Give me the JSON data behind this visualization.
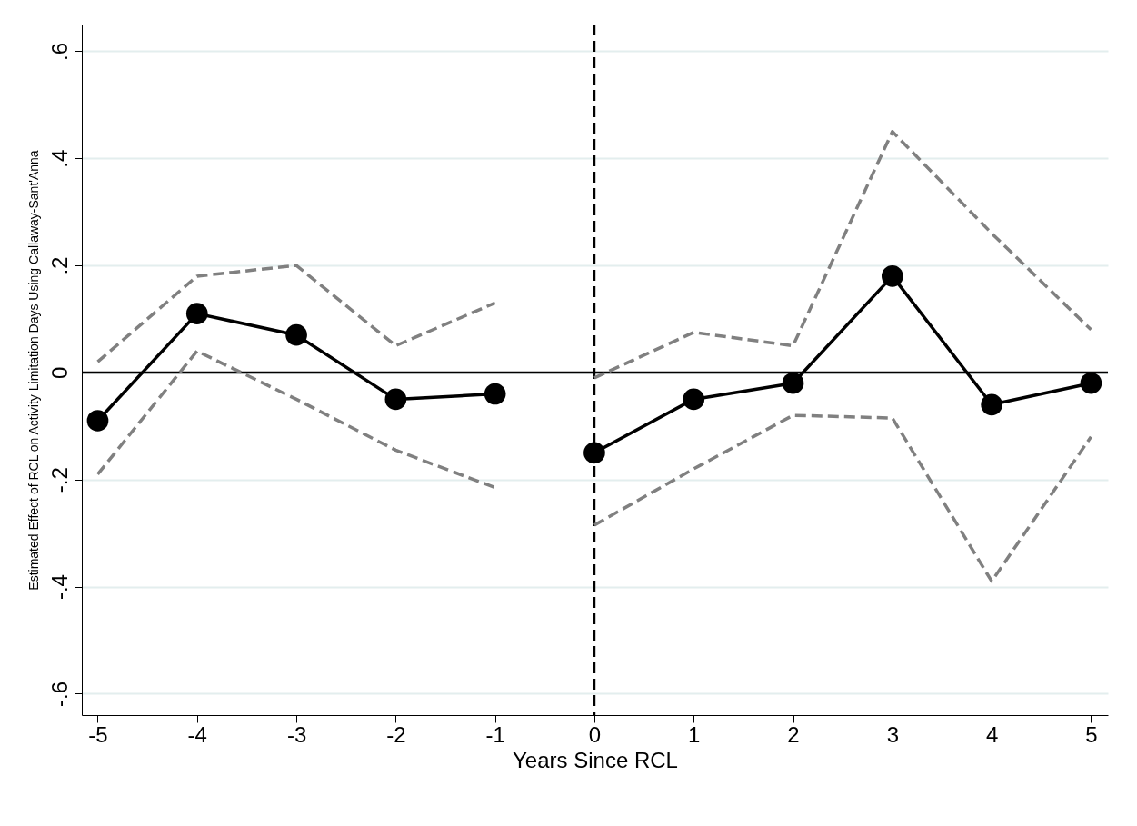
{
  "chart_data": {
    "type": "line",
    "xlabel": "Years Since RCL",
    "ylabel": "Estimated Effect of RCL on Activity Limitation Days  Using Callaway-Sant'Anna",
    "xlim": [
      -5.16,
      5.17
    ],
    "xticks": [
      -5,
      -4,
      -3,
      -2,
      -1,
      0,
      1,
      2,
      3,
      4,
      5
    ],
    "ylim": [
      -0.64,
      0.65
    ],
    "yticks": [
      {
        "value": -0.6,
        "label": "-.6"
      },
      {
        "value": -0.4,
        "label": "-.4"
      },
      {
        "value": -0.2,
        "label": "-.2"
      },
      0,
      {
        "value": 0.2,
        "label": ".2"
      },
      {
        "value": 0.4,
        "label": ".4"
      },
      {
        "value": 0.6,
        "label": ".6"
      }
    ],
    "grid": "y",
    "marker": "circle",
    "line_style": "solid",
    "series": [
      {
        "color": "#808080",
        "x": [
          -5,
          -4,
          -3,
          -2,
          -1
        ],
        "values": [
          0.02,
          0.18,
          0.2,
          0.05,
          0.13
        ],
        "marker": "none",
        "line_style": "dashed"
      },
      {
        "color": "#808080",
        "x": [
          -5,
          -4,
          -3,
          -2,
          -1
        ],
        "values": [
          -0.19,
          0.04,
          -0.05,
          -0.145,
          -0.215
        ],
        "marker": "none",
        "line_style": "dashed"
      },
      {
        "color": "#808080",
        "x": [
          0,
          1,
          2,
          3,
          4,
          5
        ],
        "values": [
          -0.01,
          0.075,
          0.05,
          0.45,
          0.26,
          0.08
        ],
        "marker": "none",
        "line_style": "dashed"
      },
      {
        "color": "#808080",
        "x": [
          0,
          1,
          2,
          3,
          4,
          5
        ],
        "values": [
          -0.285,
          -0.18,
          -0.08,
          -0.085,
          -0.39,
          -0.12
        ],
        "marker": "none",
        "line_style": "dashed"
      },
      {
        "color": "#000000",
        "x": [
          -5,
          -4,
          -3,
          -2,
          -1
        ],
        "values": [
          -0.09,
          0.11,
          0.07,
          -0.05,
          -0.04
        ]
      },
      {
        "color": "#000000",
        "x": [
          0,
          1,
          2,
          3,
          4,
          5
        ],
        "values": [
          -0.15,
          -0.05,
          -0.02,
          0.18,
          -0.06,
          -0.02
        ]
      }
    ],
    "ref_lines": [
      {
        "axis": "y",
        "value": 0,
        "color": "#000000",
        "line_style": "solid"
      },
      {
        "axis": "x",
        "value": 0,
        "color": "#000000",
        "line_style": "dashed"
      }
    ]
  }
}
